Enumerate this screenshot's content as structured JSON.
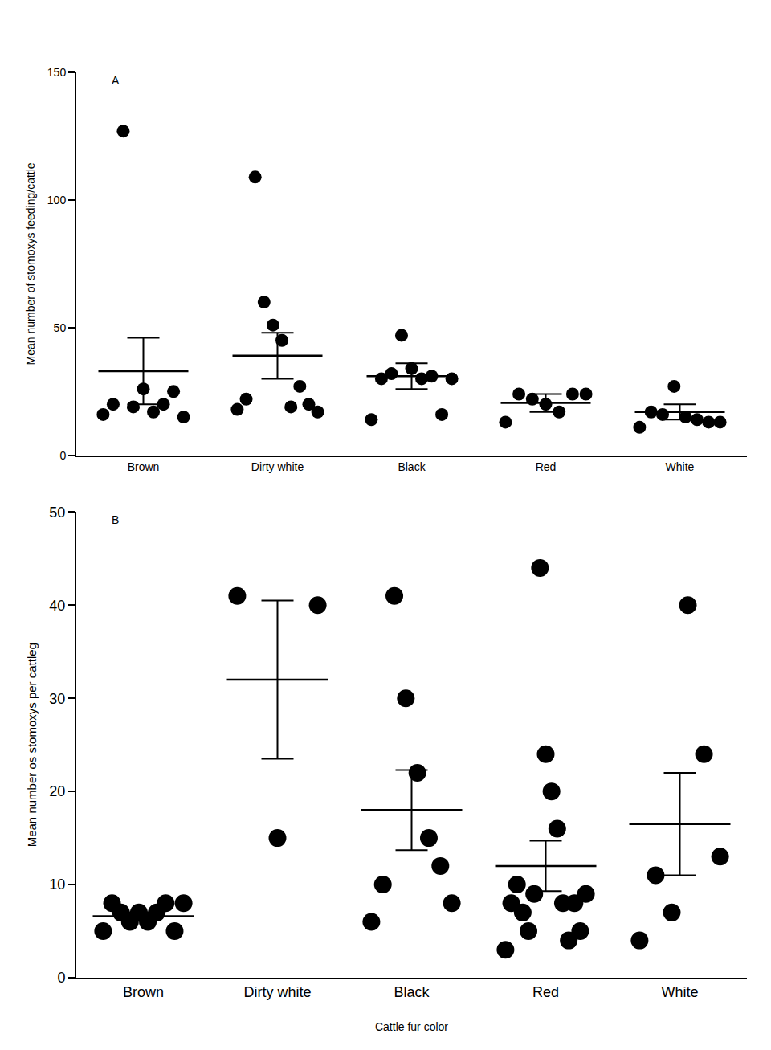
{
  "chart_data": [
    {
      "type": "scatter",
      "panel": "A",
      "y_label": "Mean number of stomoxys feeding/cattle",
      "categories": [
        "Brown",
        "Dirty white",
        "Black",
        "Red",
        "White"
      ],
      "values": [
        [
          16,
          20,
          127,
          19,
          26,
          17,
          20,
          25,
          15
        ],
        [
          18,
          22,
          109,
          60,
          51,
          45,
          19,
          27,
          20,
          17
        ],
        [
          14,
          30,
          32,
          47,
          34,
          30,
          31,
          16,
          30
        ],
        [
          13,
          24,
          22,
          20,
          17,
          24,
          24
        ],
        [
          11,
          17,
          16,
          27,
          15,
          14,
          13,
          13
        ]
      ],
      "means": [
        33,
        39,
        31,
        20.5,
        17
      ],
      "errors": [
        13,
        9,
        5,
        3.5,
        3
      ],
      "ylim": [
        0,
        150
      ],
      "yticks": [
        0,
        50,
        100,
        150
      ],
      "color": "#000000",
      "marker": "circle",
      "grid": false
    },
    {
      "type": "scatter",
      "panel": "B",
      "y_label": "Mean number os stomoxys per cattleg",
      "x_label": "Cattle fur color",
      "categories": [
        "Brown",
        "Dirty white",
        "Black",
        "Red",
        "White"
      ],
      "values": [
        [
          5,
          8,
          7,
          6,
          7,
          6,
          7,
          8,
          5,
          8
        ],
        [
          41,
          15,
          40
        ],
        [
          6,
          10,
          41,
          30,
          22,
          15,
          12,
          8
        ],
        [
          3,
          8,
          10,
          7,
          5,
          9,
          44,
          24,
          20,
          16,
          8,
          4,
          8,
          5,
          9
        ],
        [
          4,
          11,
          7,
          40,
          24,
          13
        ]
      ],
      "means": [
        6.6,
        32,
        18,
        12,
        16.5
      ],
      "errors": [
        0.4,
        8.5,
        4.3,
        2.7,
        5.5
      ],
      "ylim": [
        0,
        50
      ],
      "yticks": [
        0,
        10,
        20,
        30,
        40,
        50
      ],
      "color": "#000000",
      "marker": "circle",
      "grid": false
    }
  ]
}
